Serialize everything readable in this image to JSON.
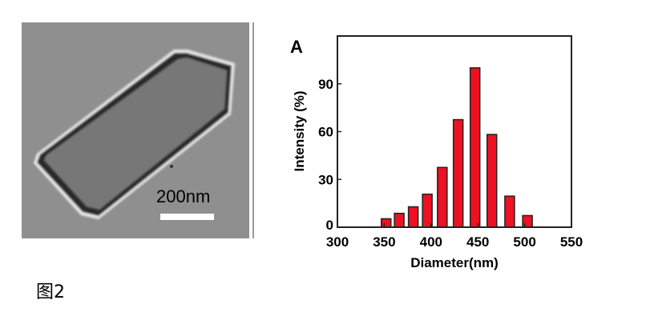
{
  "micrograph": {
    "scale_bar_label": "200nm"
  },
  "caption": "图2",
  "chart_data": {
    "type": "bar",
    "panel_label": "A",
    "title": "",
    "xlabel": "Diameter(nm)",
    "ylabel": "Intensity (%)",
    "xlim": [
      300,
      550
    ],
    "ylim": [
      0,
      120
    ],
    "xticks": [
      300,
      350,
      400,
      450,
      500,
      550
    ],
    "yticks": [
      0,
      30,
      60,
      90
    ],
    "x": [
      352,
      366,
      381,
      396,
      412,
      429,
      447,
      465,
      484,
      503
    ],
    "values": [
      5.3,
      8.7,
      12.8,
      20.7,
      37.5,
      67.5,
      100,
      58.2,
      19.5,
      7.3
    ],
    "bar_color": "#ee1122",
    "grid": false
  }
}
